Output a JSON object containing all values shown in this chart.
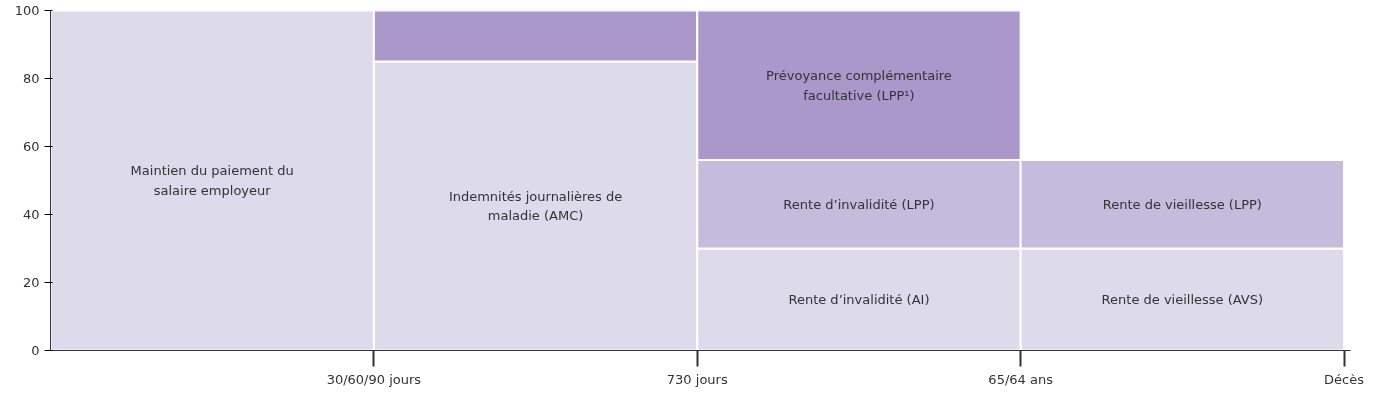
{
  "chart_data": {
    "type": "bar",
    "stacked": true,
    "categories": [
      null,
      null,
      null,
      null
    ],
    "ylim": [
      0,
      100
    ],
    "yticks": [
      0,
      20,
      40,
      60,
      80,
      100
    ],
    "grid": false,
    "series": [
      {
        "color": "#dddaeb",
        "values": [
          100,
          85,
          30,
          30
        ]
      },
      {
        "color": "#c5bbdc",
        "values": [
          null,
          null,
          26,
          26
        ]
      },
      {
        "color": "#a998c9",
        "values": [
          null,
          15,
          44,
          null
        ]
      }
    ],
    "annotations": [
      "Maintien du paiement du salaire employeur",
      "Indemnités journalières de maladie (AMC)",
      "Prévoyance complémentaire facultative (LPP¹)",
      "Rente d’invalidité (LPP)",
      "Rente d’invalidité (AI)",
      "Rente de vieillesse (LPP)",
      "Rente de vieillesse (AVS)",
      "30/60/90 jours",
      "730 jours",
      "65/64 ans",
      "Décès"
    ]
  }
}
